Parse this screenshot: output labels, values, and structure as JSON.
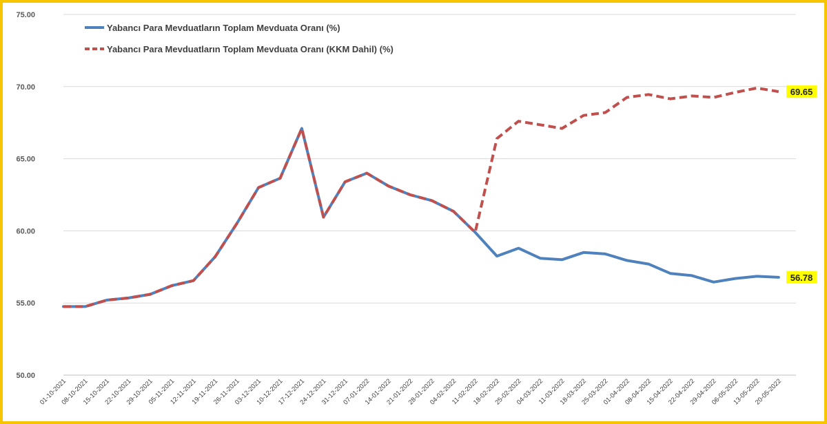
{
  "chart_data": {
    "type": "line",
    "x": [
      "01-10-2021",
      "08-10-2021",
      "15-10-2021",
      "22-10-2021",
      "29-10-2021",
      "05-11-2021",
      "12-11-2021",
      "19-11-2021",
      "26-11-2021",
      "03-12-2021",
      "10-12-2021",
      "17-12-2021",
      "24-12-2021",
      "31-12-2021",
      "07-01-2022",
      "14-01-2022",
      "21-01-2022",
      "28-01-2022",
      "04-02-2022",
      "11-02-2022",
      "18-02-2022",
      "25-02-2022",
      "04-03-2022",
      "11-03-2022",
      "18-03-2022",
      "25-03-2022",
      "01-04-2022",
      "08-04-2022",
      "15-04-2022",
      "22-04-2022",
      "29-04-2022",
      "06-05-2022",
      "13-05-2022",
      "20-05-2022"
    ],
    "y_ticks": [
      "50.00",
      "55.00",
      "60.00",
      "65.00",
      "70.00",
      "75.00"
    ],
    "ylim": [
      50,
      75
    ],
    "grid": "horizontal",
    "legend_position": "top-left",
    "series": [
      {
        "name": "Yabancı Para Mevduatların Toplam Mevduata Oranı (%)",
        "color": "#4f81bd",
        "style": "solid",
        "values": [
          54.75,
          54.75,
          55.2,
          55.35,
          55.6,
          56.2,
          56.55,
          58.2,
          60.5,
          63.0,
          63.65,
          67.1,
          60.95,
          63.4,
          64.0,
          63.1,
          62.5,
          62.1,
          61.35,
          59.9,
          58.25,
          58.8,
          58.1,
          58.0,
          58.5,
          58.4,
          57.95,
          57.7,
          57.05,
          56.9,
          56.45,
          56.7,
          56.85,
          56.78
        ],
        "end_label": "56.78"
      },
      {
        "name": "Yabancı Para Mevduatların Toplam Mevduata Oranı (KKM Dahil) (%)",
        "color": "#c0504d",
        "style": "dashed",
        "values": [
          54.75,
          54.75,
          55.2,
          55.35,
          55.6,
          56.2,
          56.55,
          58.2,
          60.5,
          63.0,
          63.65,
          67.1,
          60.95,
          63.4,
          64.0,
          63.1,
          62.5,
          62.1,
          61.35,
          59.9,
          66.4,
          67.6,
          67.35,
          67.1,
          68.0,
          68.2,
          69.25,
          69.45,
          69.15,
          69.35,
          69.25,
          69.6,
          69.9,
          69.65
        ],
        "end_label": "69.65"
      }
    ],
    "end_label_bg": "#ffff00"
  }
}
